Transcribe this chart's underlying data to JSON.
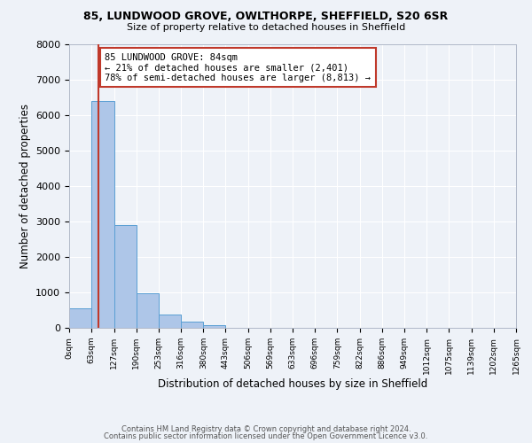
{
  "title1": "85, LUNDWOOD GROVE, OWLTHORPE, SHEFFIELD, S20 6SR",
  "title2": "Size of property relative to detached houses in Sheffield",
  "xlabel": "Distribution of detached houses by size in Sheffield",
  "ylabel": "Number of detached properties",
  "bar_values": [
    550,
    6400,
    2900,
    980,
    380,
    170,
    80,
    0,
    0,
    0,
    0,
    0,
    0,
    0,
    0,
    0,
    0,
    0,
    0,
    0
  ],
  "bin_edges": [
    0,
    63,
    127,
    190,
    253,
    316,
    380,
    443,
    506,
    569,
    633,
    696,
    759,
    822,
    886,
    949,
    1012,
    1075,
    1139,
    1202,
    1265
  ],
  "tick_labels": [
    "0sqm",
    "63sqm",
    "127sqm",
    "190sqm",
    "253sqm",
    "316sqm",
    "380sqm",
    "443sqm",
    "506sqm",
    "569sqm",
    "633sqm",
    "696sqm",
    "759sqm",
    "822sqm",
    "886sqm",
    "949sqm",
    "1012sqm",
    "1075sqm",
    "1139sqm",
    "1202sqm",
    "1265sqm"
  ],
  "bar_color": "#aec6e8",
  "bar_edge_color": "#5a9fd4",
  "property_line_x": 84,
  "vline_color": "#c0392b",
  "annotation_title": "85 LUNDWOOD GROVE: 84sqm",
  "annotation_line1": "← 21% of detached houses are smaller (2,401)",
  "annotation_line2": "78% of semi-detached houses are larger (8,813) →",
  "annotation_box_color": "#c0392b",
  "ylim": [
    0,
    8000
  ],
  "yticks": [
    0,
    1000,
    2000,
    3000,
    4000,
    5000,
    6000,
    7000,
    8000
  ],
  "footer_line1": "Contains HM Land Registry data © Crown copyright and database right 2024.",
  "footer_line2": "Contains public sector information licensed under the Open Government Licence v3.0.",
  "bg_color": "#eef2f8",
  "grid_color": "#ffffff"
}
